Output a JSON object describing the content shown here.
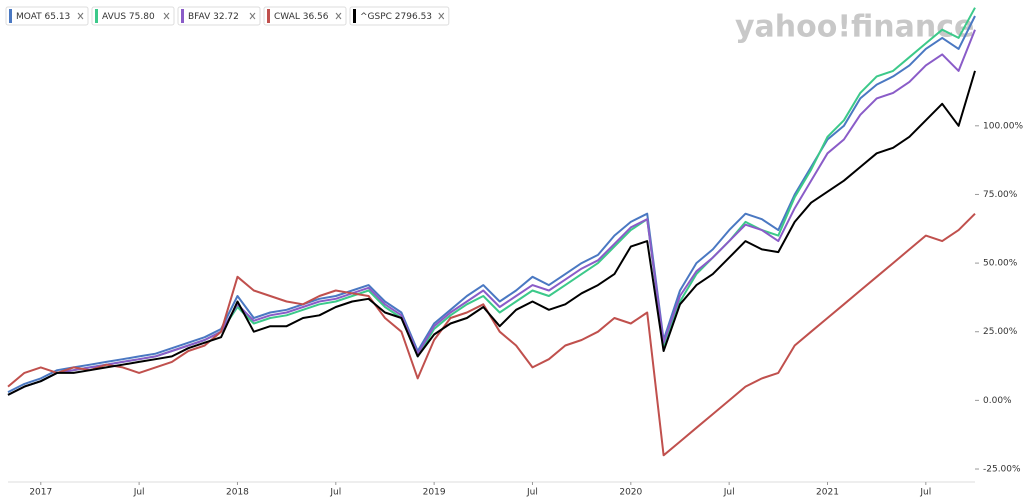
{
  "chart_data": {
    "type": "line",
    "logo": "yahoo!finance",
    "categories": [
      null,
      null,
      "2017",
      null,
      null,
      null,
      null,
      null,
      "Jul",
      null,
      null,
      null,
      null,
      null,
      "2018",
      null,
      null,
      null,
      null,
      null,
      "Jul",
      null,
      null,
      null,
      null,
      null,
      "2019",
      null,
      null,
      null,
      null,
      null,
      "Jul",
      null,
      null,
      null,
      null,
      null,
      "2020",
      null,
      null,
      null,
      null,
      null,
      "Jul",
      null,
      null,
      null,
      null,
      null,
      "2021",
      null,
      null,
      null,
      null,
      null,
      "Jul",
      null,
      null,
      null
    ],
    "series": [
      {
        "name": "MOAT 65.13",
        "color": "#4a78c2",
        "values": [
          3,
          6,
          8,
          11,
          12,
          13,
          14,
          15,
          16,
          17,
          19,
          21,
          23,
          26,
          38,
          30,
          32,
          33,
          35,
          37,
          38,
          40,
          42,
          36,
          32,
          18,
          28,
          33,
          38,
          42,
          36,
          40,
          45,
          42,
          46,
          50,
          53,
          60,
          65,
          68,
          22,
          40,
          50,
          55,
          62,
          68,
          66,
          62,
          75,
          85,
          95,
          100,
          110,
          115,
          118,
          122,
          128,
          132,
          128,
          140
        ]
      },
      {
        "name": "AVUS 75.80",
        "color": "#3cc98a",
        "values": [
          2,
          5,
          7,
          10,
          11,
          12,
          13,
          14,
          15,
          16,
          18,
          20,
          22,
          25,
          34,
          28,
          30,
          31,
          33,
          35,
          36,
          38,
          40,
          34,
          30,
          16,
          26,
          31,
          35,
          38,
          32,
          36,
          40,
          38,
          42,
          46,
          50,
          56,
          62,
          66,
          20,
          36,
          46,
          52,
          58,
          65,
          62,
          60,
          74,
          84,
          96,
          102,
          112,
          118,
          120,
          125,
          130,
          135,
          132,
          143
        ]
      },
      {
        "name": "BFAV 32.72",
        "color": "#8a5cc8",
        "values": [
          2,
          5,
          7,
          10,
          11,
          12,
          13,
          14,
          15,
          16,
          18,
          20,
          22,
          25,
          35,
          29,
          31,
          32,
          34,
          36,
          37,
          39,
          41,
          35,
          31,
          17,
          27,
          32,
          36,
          40,
          34,
          38,
          42,
          40,
          44,
          48,
          51,
          57,
          63,
          66,
          21,
          38,
          47,
          52,
          58,
          64,
          62,
          58,
          70,
          80,
          90,
          95,
          104,
          110,
          112,
          116,
          122,
          126,
          120,
          135
        ]
      },
      {
        "name": "CWAL 36.56",
        "color": "#c0504d",
        "values": [
          5,
          10,
          12,
          10,
          12,
          11,
          13,
          12,
          10,
          12,
          14,
          18,
          20,
          25,
          45,
          40,
          38,
          36,
          35,
          38,
          40,
          39,
          38,
          30,
          25,
          8,
          22,
          30,
          32,
          35,
          25,
          20,
          12,
          15,
          20,
          22,
          25,
          30,
          28,
          32,
          -20,
          -15,
          -10,
          -5,
          0,
          5,
          8,
          10,
          20,
          25,
          30,
          35,
          40,
          45,
          50,
          55,
          60,
          58,
          62,
          68
        ]
      },
      {
        "name": "^GSPC 2796.53",
        "color": "#000000",
        "values": [
          2,
          5,
          7,
          10,
          10,
          11,
          12,
          13,
          14,
          15,
          16,
          19,
          21,
          23,
          36,
          25,
          27,
          27,
          30,
          31,
          34,
          36,
          37,
          32,
          30,
          16,
          24,
          28,
          30,
          34,
          27,
          33,
          36,
          33,
          35,
          39,
          42,
          46,
          56,
          58,
          18,
          35,
          42,
          46,
          52,
          58,
          55,
          54,
          65,
          72,
          76,
          80,
          85,
          90,
          92,
          96,
          102,
          108,
          100,
          120
        ]
      }
    ],
    "ylim": [
      -29,
      144
    ],
    "yticks": [
      {
        "value": -25,
        "label": "-25.00%"
      },
      {
        "value": 0,
        "label": "0.00%"
      },
      {
        "value": 25,
        "label": "25.00%"
      },
      {
        "value": 50,
        "label": "50.00%"
      },
      {
        "value": 75,
        "label": "75.00%"
      },
      {
        "value": 100,
        "label": "100.00%"
      }
    ],
    "grid": false
  }
}
